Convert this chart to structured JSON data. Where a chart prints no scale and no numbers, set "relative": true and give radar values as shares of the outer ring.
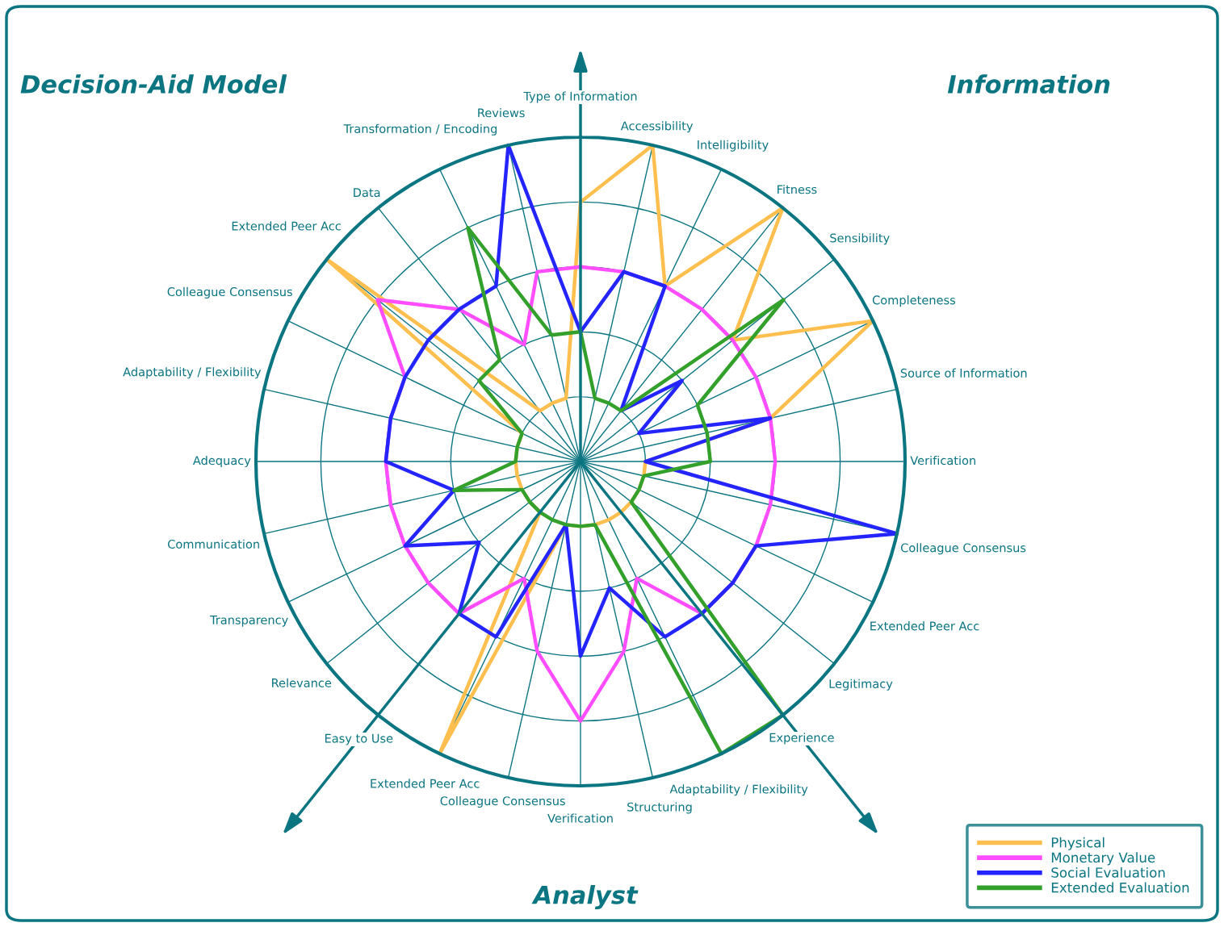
{
  "chart_data": {
    "type": "radar",
    "relative": true,
    "categories": [
      "Type of Information",
      "Accessibility",
      "Intelligibility",
      "Fitness",
      "Sensibility",
      "Completeness",
      "Source of Information",
      "Verification",
      "Colleague Consensus",
      "Extended Peer Acc",
      "Legitimacy",
      "Experience",
      "Adaptability / Flexibility",
      "Structuring",
      "Verification",
      "Colleague Consensus",
      "Extended Peer Acc",
      "Easy to Use",
      "Relevance",
      "Transparency",
      "Communication",
      "Adequacy",
      "Adaptability / Flexibility",
      "Colleague Consensus",
      "Extended Peer Acc",
      "Data",
      "Transformation / Encoding",
      "Reviews"
    ],
    "series": [
      {
        "name": "Physical",
        "color": "#ffbf4f",
        "values": [
          0.8,
          1.0,
          0.6,
          1.0,
          0.6,
          1.0,
          0.6,
          0.2,
          0.2,
          0.2,
          0.2,
          0.2,
          0.2,
          0.2,
          0.2,
          0.2,
          1.0,
          0.2,
          0.2,
          0.2,
          0.2,
          0.2,
          0.2,
          0.2,
          1.0,
          0.2,
          0.2,
          0.2
        ]
      },
      {
        "name": "Monetary Value",
        "color": "#ff4dff",
        "values": [
          0.6,
          0.6,
          0.6,
          0.6,
          0.6,
          0.6,
          0.6,
          0.6,
          0.6,
          0.6,
          0.6,
          0.6,
          0.4,
          0.6,
          0.8,
          0.6,
          0.4,
          0.6,
          0.6,
          0.6,
          0.6,
          0.6,
          0.6,
          0.6,
          0.8,
          0.6,
          0.4,
          0.6
        ]
      },
      {
        "name": "Social Evaluation",
        "color": "#2424ff",
        "values": [
          0.4,
          0.6,
          0.6,
          0.2,
          0.4,
          0.2,
          0.6,
          0.2,
          1.0,
          0.6,
          0.6,
          0.6,
          0.6,
          0.4,
          0.6,
          0.2,
          0.6,
          0.6,
          0.4,
          0.6,
          0.4,
          0.6,
          0.6,
          0.6,
          0.6,
          0.6,
          0.6,
          1.0
        ]
      },
      {
        "name": "Extended Evaluation",
        "color": "#33a02c",
        "values": [
          0.4,
          0.2,
          0.2,
          0.2,
          0.8,
          0.4,
          0.4,
          0.4,
          0.2,
          0.2,
          0.2,
          1.0,
          1.0,
          0.2,
          0.2,
          0.2,
          0.2,
          0.2,
          0.2,
          0.2,
          0.4,
          0.2,
          0.2,
          0.2,
          0.4,
          0.4,
          0.8,
          0.4
        ]
      }
    ],
    "annotations": [
      "Decision-Aid Model",
      "Information",
      "Analyst"
    ],
    "legend": "bottom right",
    "grid": true,
    "marker": "none",
    "line_style": "solid"
  }
}
